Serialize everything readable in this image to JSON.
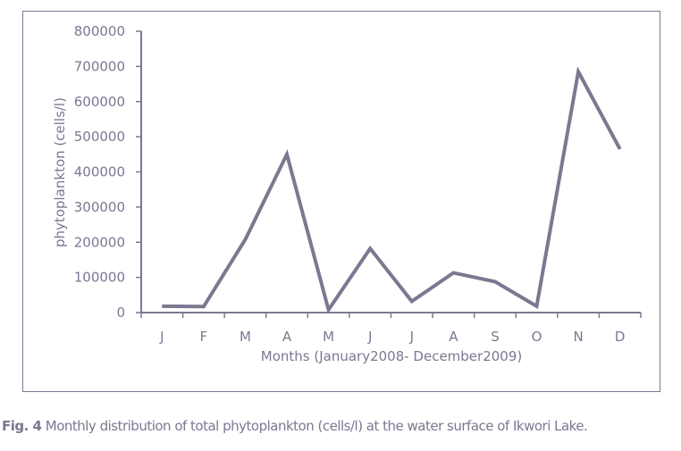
{
  "chart_data": {
    "type": "line",
    "title": "",
    "xlabel": "Months (January2008- December2009)",
    "ylabel": "phytoplankton (cells/l)",
    "categories": [
      "J",
      "F",
      "M",
      "A",
      "M",
      "J",
      "J",
      "A",
      "S",
      "O",
      "N",
      "D"
    ],
    "series": [
      {
        "name": "Total phytoplankton",
        "values": [
          18000,
          17000,
          208000,
          450000,
          8000,
          182000,
          32000,
          113000,
          88000,
          18000,
          685000,
          465000
        ]
      }
    ],
    "ylim": [
      0,
      800000
    ],
    "yticks": [
      0,
      100000,
      200000,
      300000,
      400000,
      500000,
      600000,
      700000,
      800000
    ],
    "ytick_labels": [
      "0",
      "100000",
      "200000",
      "300000",
      "400000",
      "500000",
      "600000",
      "700000",
      "800000"
    ],
    "grid": false,
    "legend": "none",
    "line_color": "#7b7891"
  },
  "caption": {
    "label": "Fig. 4",
    "text": " Monthly distribution of total phytoplankton (cells/l) at the water surface of Ikwori Lake."
  }
}
